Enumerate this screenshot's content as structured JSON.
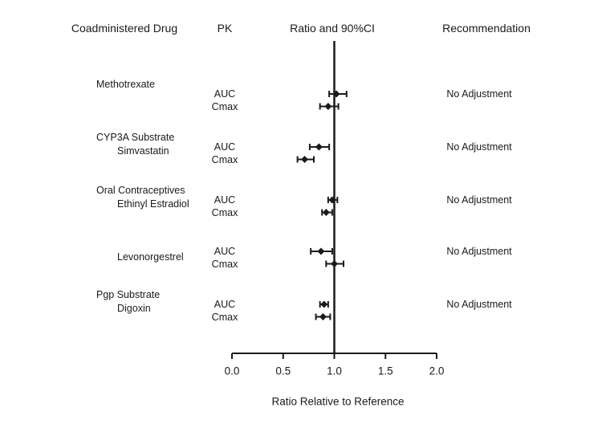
{
  "figure": {
    "columns": {
      "coadministered_drug": "Coadministered Drug",
      "pk": "PK",
      "ratio": "Ratio and 90%CI",
      "recommendation": "Recommendation"
    }
  },
  "chart_data": {
    "type": "forest",
    "title": "",
    "xlabel": "Ratio Relative to Reference",
    "xlim": [
      0.0,
      2.0
    ],
    "xticks": [
      0.0,
      0.5,
      1.0,
      1.5,
      2.0
    ],
    "reference_line": 1.0,
    "grid": false,
    "marker": "diamond",
    "line_color": "#1a1a1a",
    "groups": [
      {
        "group_label": "",
        "drug": "Methotrexate",
        "recommendation": "No Adjustment",
        "rows": [
          {
            "pk": "AUC",
            "value": 1.02,
            "lower": 0.95,
            "upper": 1.12
          },
          {
            "pk": "Cmax",
            "value": 0.94,
            "lower": 0.86,
            "upper": 1.04
          }
        ]
      },
      {
        "group_label": "CYP3A Substrate",
        "drug": "Simvastatin",
        "recommendation": "No Adjustment",
        "rows": [
          {
            "pk": "AUC",
            "value": 0.85,
            "lower": 0.76,
            "upper": 0.95
          },
          {
            "pk": "Cmax",
            "value": 0.71,
            "lower": 0.64,
            "upper": 0.8
          }
        ]
      },
      {
        "group_label": "Oral Contraceptives",
        "drug": "Ethinyl Estradiol",
        "recommendation": "No Adjustment",
        "rows": [
          {
            "pk": "AUC",
            "value": 0.98,
            "lower": 0.94,
            "upper": 1.03
          },
          {
            "pk": "Cmax",
            "value": 0.92,
            "lower": 0.88,
            "upper": 0.98
          }
        ]
      },
      {
        "group_label": "",
        "drug": "Levonorgestrel",
        "recommendation": "No Adjustment",
        "rows": [
          {
            "pk": "AUC",
            "value": 0.87,
            "lower": 0.77,
            "upper": 0.98
          },
          {
            "pk": "Cmax",
            "value": 1.0,
            "lower": 0.92,
            "upper": 1.09
          }
        ]
      },
      {
        "group_label": "Pgp Substrate",
        "drug": "Digoxin",
        "recommendation": "No Adjustment",
        "rows": [
          {
            "pk": "AUC",
            "value": 0.9,
            "lower": 0.86,
            "upper": 0.94
          },
          {
            "pk": "Cmax",
            "value": 0.89,
            "lower": 0.82,
            "upper": 0.96
          }
        ]
      }
    ]
  }
}
